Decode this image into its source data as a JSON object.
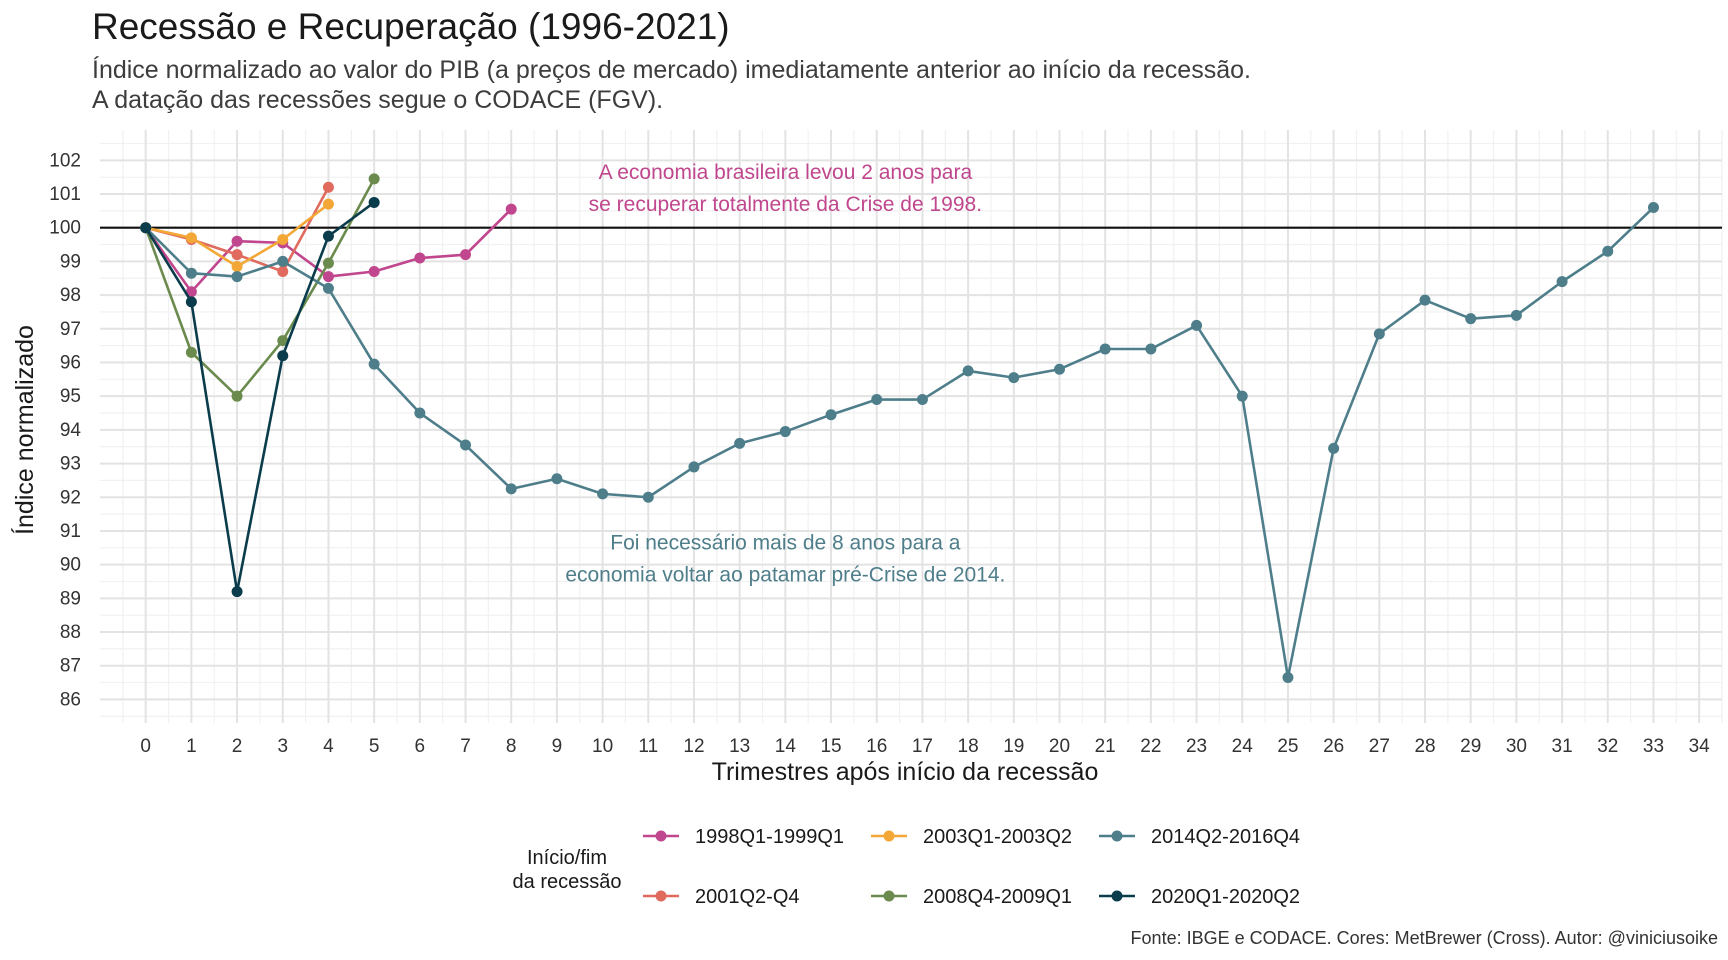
{
  "title": "Recessão e Recuperação (1996-2021)",
  "subtitle_line1": "Índice normalizado ao valor do PIB (a preços de mercado) imediatamente anterior ao início da recessão.",
  "subtitle_line2": "A datação das recessões segue o CODACE (FGV).",
  "caption": "Fonte: IBGE e CODACE. Cores: MetBrewer (Cross). Autor: @viniciusoike",
  "chart_data": {
    "type": "line",
    "xlabel": "Trimestres após início da recessão",
    "ylabel": "Índice normalizado",
    "xlim": [
      -1,
      34.5
    ],
    "ylim": [
      85.3,
      102.9
    ],
    "x_ticks": [
      0,
      1,
      2,
      3,
      4,
      5,
      6,
      7,
      8,
      9,
      10,
      11,
      12,
      13,
      14,
      15,
      16,
      17,
      18,
      19,
      20,
      21,
      22,
      23,
      24,
      25,
      26,
      27,
      28,
      29,
      30,
      31,
      32,
      33,
      34
    ],
    "y_ticks": [
      86,
      87,
      88,
      89,
      90,
      91,
      92,
      93,
      94,
      95,
      96,
      97,
      98,
      99,
      100,
      101,
      102
    ],
    "reference_line": 100,
    "grid": true,
    "legend_title_line1": "Início/fim",
    "legend_title_line2": "da recessão",
    "legend_position": "bottom",
    "series": [
      {
        "name": "1998Q1-1999Q1",
        "color": "#c0478e",
        "x": [
          0,
          1,
          2,
          3,
          4,
          5,
          6,
          7,
          8
        ],
        "values": [
          100,
          98.1,
          99.6,
          99.55,
          98.55,
          98.7,
          99.1,
          99.2,
          100.55
        ]
      },
      {
        "name": "2001Q2-Q4",
        "color": "#e06a5e",
        "x": [
          0,
          1,
          2,
          3,
          4
        ],
        "values": [
          100,
          99.65,
          99.2,
          98.7,
          101.2
        ]
      },
      {
        "name": "2003Q1-2003Q2",
        "color": "#f3a736",
        "x": [
          0,
          1,
          2,
          3,
          4
        ],
        "values": [
          100,
          99.7,
          98.85,
          99.65,
          100.7
        ]
      },
      {
        "name": "2008Q4-2009Q1",
        "color": "#6b8b4e",
        "x": [
          0,
          1,
          2,
          3,
          4,
          5
        ],
        "values": [
          100,
          96.3,
          95.0,
          96.65,
          98.95,
          101.45
        ]
      },
      {
        "name": "2014Q2-2016Q4",
        "color": "#4f7e8b",
        "x": [
          0,
          1,
          2,
          3,
          4,
          5,
          6,
          7,
          8,
          9,
          10,
          11,
          12,
          13,
          14,
          15,
          16,
          17,
          18,
          19,
          20,
          21,
          22,
          23,
          24,
          25,
          26,
          27,
          28,
          29,
          30,
          31,
          32,
          33
        ],
        "values": [
          100,
          98.65,
          98.55,
          99.0,
          98.2,
          95.95,
          94.5,
          93.55,
          92.25,
          92.55,
          92.1,
          92.0,
          92.9,
          93.6,
          93.95,
          94.45,
          94.9,
          94.9,
          95.75,
          95.55,
          95.8,
          96.4,
          96.4,
          97.1,
          95.0,
          86.65,
          93.45,
          96.85,
          97.85,
          97.3,
          97.4,
          98.4,
          99.3,
          100.6
        ]
      },
      {
        "name": "2020Q1-2020Q2",
        "color": "#0b3c4c",
        "x": [
          0,
          1,
          2,
          3,
          4,
          5
        ],
        "values": [
          100,
          97.8,
          89.2,
          96.2,
          99.75,
          100.75
        ]
      }
    ],
    "annotations": [
      {
        "line1": "A economia brasileira levou 2 anos para",
        "line2": "se recuperar totalmente da Crise de 1998.",
        "color": "#c0478e",
        "x": 14.0,
        "y1": 101.45,
        "y2": 100.5
      },
      {
        "line1": "Foi necessário mais de 8 anos para a",
        "line2": "economia voltar ao patamar pré-Crise de 2014.",
        "color": "#4f7e8b",
        "x": 14.0,
        "y1": 90.45,
        "y2": 89.5
      }
    ]
  }
}
